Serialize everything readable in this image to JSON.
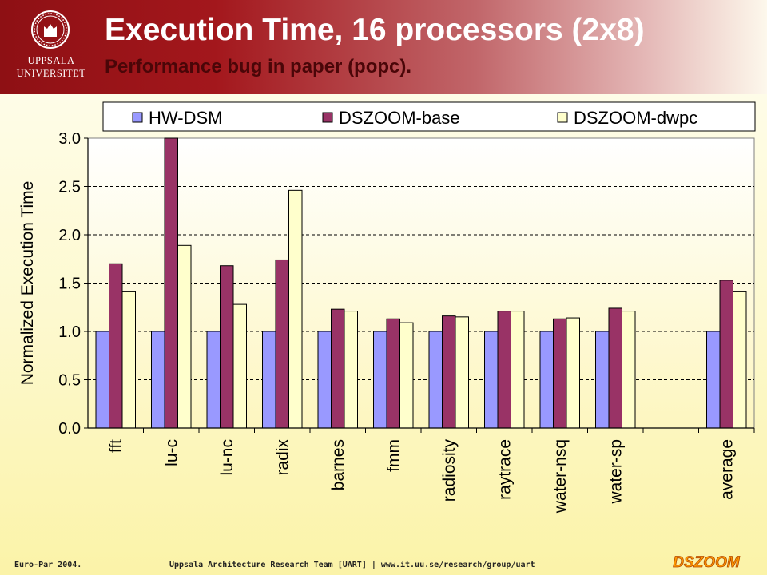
{
  "header": {
    "title": "Execution Time, 16 processors (2x8)",
    "subtitle": "Performance bug in paper (popc).",
    "logo_line1": "UPPSALA",
    "logo_line2": "UNIVERSITET"
  },
  "footer": {
    "left": "Euro-Par 2004.",
    "center": "Uppsala Architecture Research Team [UART] | www.it.uu.se/research/group/uart",
    "logo": "DSZOOM"
  },
  "chart_data": {
    "type": "bar",
    "title": "",
    "xlabel": "",
    "ylabel": "Normalized Execution Time",
    "ylim": [
      0,
      3.0
    ],
    "yticks": [
      "0.0",
      "0.5",
      "1.0",
      "1.5",
      "2.0",
      "2.5",
      "3.0"
    ],
    "grid": true,
    "legend": "top",
    "categories": [
      "fft",
      "lu-c",
      "lu-nc",
      "radix",
      "barnes",
      "fmm",
      "radiosity",
      "raytrace",
      "water-nsq",
      "water-sp",
      "",
      "average"
    ],
    "series": [
      {
        "name": "HW-DSM",
        "color": "#9999ff",
        "values": [
          1.0,
          1.0,
          1.0,
          1.0,
          1.0,
          1.0,
          1.0,
          1.0,
          1.0,
          1.0,
          null,
          1.0
        ]
      },
      {
        "name": "DSZOOM-base",
        "color": "#993366",
        "values": [
          1.7,
          3.02,
          1.68,
          1.74,
          1.23,
          1.13,
          1.16,
          1.21,
          1.13,
          1.24,
          null,
          1.53
        ]
      },
      {
        "name": "DSZOOM-dwpc",
        "color": "#ffffcc",
        "values": [
          1.41,
          1.89,
          1.28,
          2.46,
          1.21,
          1.09,
          1.15,
          1.21,
          1.14,
          1.21,
          null,
          1.41
        ]
      }
    ]
  }
}
